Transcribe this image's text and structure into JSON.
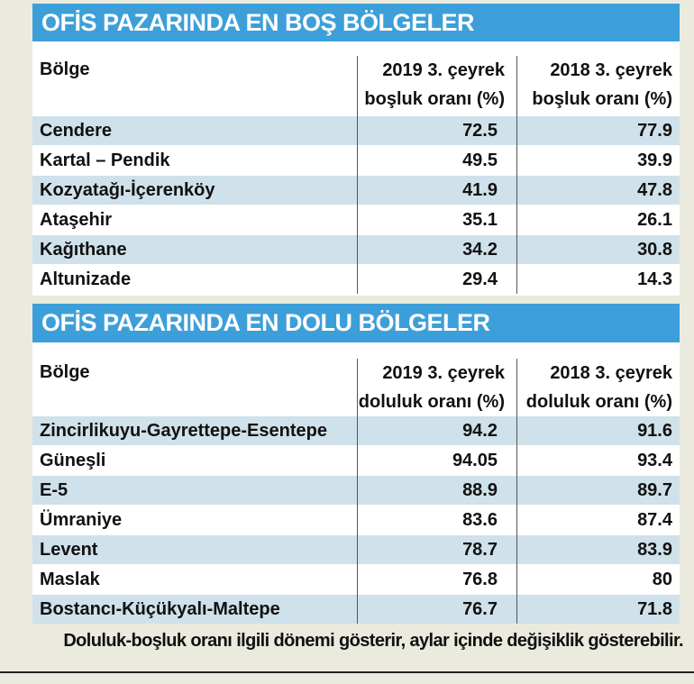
{
  "section1": {
    "title": "OFİS PAZARINDA EN BOŞ BÖLGELER",
    "col_region": "Bölge",
    "col_2019_line1": "2019 3. çeyrek",
    "col_2019_line2": "boşluk oranı (%)",
    "col_2018_line1": "2018 3. çeyrek",
    "col_2018_line2": "boşluk oranı (%)",
    "rows": [
      {
        "region": "Cendere",
        "v2019": "72.5",
        "v2018": "77.9"
      },
      {
        "region": "Kartal – Pendik",
        "v2019": "49.5",
        "v2018": "39.9"
      },
      {
        "region": "Kozyatağı-İçerenköy",
        "v2019": "41.9",
        "v2018": "47.8"
      },
      {
        "region": "Ataşehir",
        "v2019": "35.1",
        "v2018": "26.1"
      },
      {
        "region": "Kağıthane",
        "v2019": "34.2",
        "v2018": "30.8"
      },
      {
        "region": "Altunizade",
        "v2019": "29.4",
        "v2018": "14.3"
      }
    ]
  },
  "section2": {
    "title": "OFİS PAZARINDA EN DOLU BÖLGELER",
    "col_region": "Bölge",
    "col_2019_line1": "2019 3. çeyrek",
    "col_2019_line2": "doluluk oranı (%)",
    "col_2018_line1": "2018 3. çeyrek",
    "col_2018_line2": "doluluk oranı (%)",
    "rows": [
      {
        "region": "Zincirlikuyu-Gayrettepe-Esentepe",
        "v2019": "94.2",
        "v2018": "91.6"
      },
      {
        "region": "Güneşli",
        "v2019": "94.05",
        "v2018": "93.4"
      },
      {
        "region": "E-5",
        "v2019": "88.9",
        "v2018": "89.7"
      },
      {
        "region": "Ümraniye",
        "v2019": "83.6",
        "v2018": "87.4"
      },
      {
        "region": "Levent",
        "v2019": "78.7",
        "v2018": "83.9"
      },
      {
        "region": "Maslak",
        "v2019": "76.8",
        "v2018": "80"
      },
      {
        "region": "Bostancı-Küçükyalı-Maltepe",
        "v2019": "76.7",
        "v2018": "71.8"
      }
    ]
  },
  "footnote": "Doluluk-boşluk oranı ilgili dönemi gösterir, aylar içinde değişiklik gösterebilir.",
  "colors": {
    "title_bar": "#3d9fd9",
    "row_shade": "#cfe1ea",
    "background": "#eaeade"
  }
}
